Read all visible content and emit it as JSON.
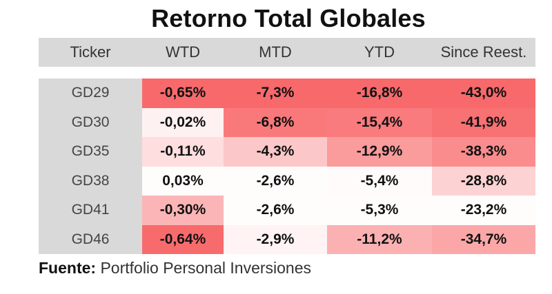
{
  "title": "Retorno Total Globales",
  "source": {
    "label": "Fuente:",
    "text": "Portfolio Personal Inversiones"
  },
  "columns": [
    "Ticker",
    "WTD",
    "MTD",
    "YTD",
    "Since Reest."
  ],
  "colors": {
    "header_bg": "#d9d9d9",
    "ticker_bg": "#d9d9d9",
    "heat_negative": "#f8696b",
    "heat_neutral": "#ffffff"
  },
  "chart_data": {
    "type": "table",
    "title": "Retorno Total Globales",
    "columns": [
      "Ticker",
      "WTD",
      "MTD",
      "YTD",
      "Since Reest."
    ],
    "rows": [
      {
        "ticker": "GD29",
        "values": [
          "-0,65%",
          "-7,3%",
          "-16,8%",
          "-43,0%"
        ],
        "numeric": [
          -0.65,
          -7.3,
          -16.8,
          -43.0
        ]
      },
      {
        "ticker": "GD30",
        "values": [
          "-0,02%",
          "-6,8%",
          "-15,4%",
          "-41,9%"
        ],
        "numeric": [
          -0.02,
          -6.8,
          -15.4,
          -41.9
        ]
      },
      {
        "ticker": "GD35",
        "values": [
          "-0,11%",
          "-4,3%",
          "-12,9%",
          "-38,3%"
        ],
        "numeric": [
          -0.11,
          -4.3,
          -12.9,
          -38.3
        ]
      },
      {
        "ticker": "GD38",
        "values": [
          "0,03%",
          "-2,6%",
          "-5,4%",
          "-28,8%"
        ],
        "numeric": [
          0.03,
          -2.6,
          -5.4,
          -28.8
        ]
      },
      {
        "ticker": "GD41",
        "values": [
          "-0,30%",
          "-2,6%",
          "-5,3%",
          "-23,2%"
        ],
        "numeric": [
          -0.3,
          -2.6,
          -5.3,
          -23.2
        ]
      },
      {
        "ticker": "GD46",
        "values": [
          "-0,64%",
          "-2,9%",
          "-11,2%",
          "-34,7%"
        ],
        "numeric": [
          -0.64,
          -2.9,
          -11.2,
          -34.7
        ]
      }
    ]
  }
}
